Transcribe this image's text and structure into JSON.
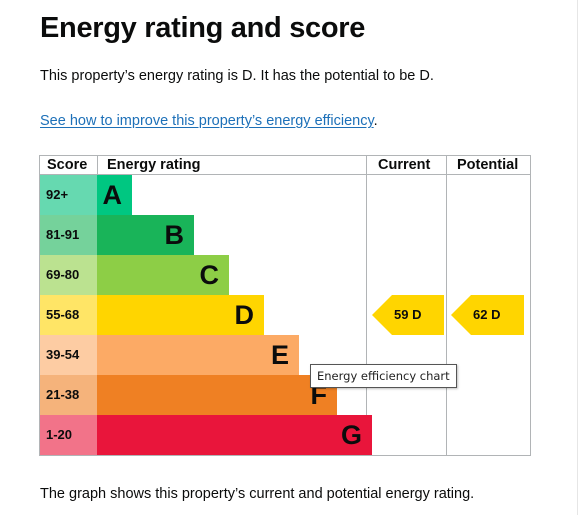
{
  "page": {
    "title": "Energy rating and score",
    "summary": "This property’s energy rating is D. It has the potential to be D.",
    "improve_link": "See how to improve this property’s energy efficiency",
    "improve_link_suffix": ".",
    "footer": "The graph shows this property’s current and potential energy rating."
  },
  "chart": {
    "headers": {
      "score": "Score",
      "rating": "Energy rating",
      "current": "Current",
      "potential": "Potential"
    },
    "bands": [
      {
        "letter": "A",
        "score": "92+",
        "color": "#00c781",
        "score_color": "#66d9b0",
        "width_fraction": 0.12
      },
      {
        "letter": "B",
        "score": "81-91",
        "color": "#19b459",
        "score_color": "#75d29b",
        "width_fraction": 0.33
      },
      {
        "letter": "C",
        "score": "69-80",
        "color": "#8dce46",
        "score_color": "#bbe290",
        "width_fraction": 0.45
      },
      {
        "letter": "D",
        "score": "55-68",
        "color": "#ffd500",
        "score_color": "#ffe566",
        "width_fraction": 0.57
      },
      {
        "letter": "E",
        "score": "39-54",
        "color": "#fcaa65",
        "score_color": "#fdcca3",
        "width_fraction": 0.69
      },
      {
        "letter": "F",
        "score": "21-38",
        "color": "#ef8023",
        "score_color": "#f5b37b",
        "width_fraction": 0.82
      },
      {
        "letter": "G",
        "score": "1-20",
        "color": "#e9153b",
        "score_color": "#f27389",
        "width_fraction": 0.94
      }
    ],
    "current": {
      "label": "59 D",
      "band_index": 3,
      "color": "#ffd500"
    },
    "potential": {
      "label": "62 D",
      "band_index": 3,
      "color": "#ffd500"
    },
    "tooltip": "Energy efficiency chart"
  }
}
